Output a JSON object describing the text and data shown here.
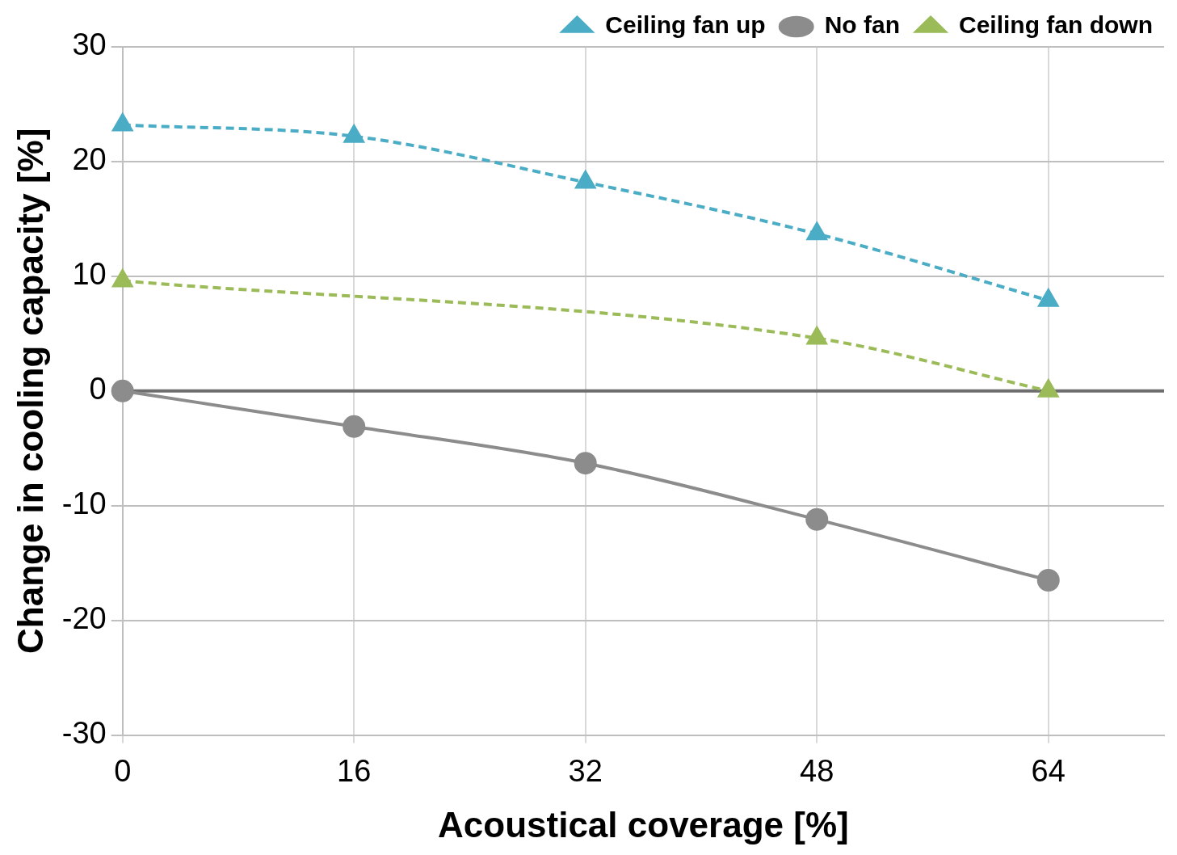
{
  "chart_data": {
    "type": "line",
    "xlabel": "Acoustical coverage [%]",
    "ylabel": "Change in cooling capacity [%]",
    "x": [
      0,
      16,
      32,
      48,
      64
    ],
    "series": [
      {
        "name": "Ceiling fan up",
        "color": "#4bacc6",
        "values": [
          23.2,
          22.2,
          18.2,
          13.7,
          7.9
        ],
        "line_style": "dashed",
        "marker": "triangle"
      },
      {
        "name": "No fan",
        "color": "#8c8c8c",
        "values": [
          0,
          -3.1,
          -6.3,
          -11.2,
          -16.5
        ],
        "line_style": "solid",
        "marker": "circle"
      },
      {
        "name": "Ceiling fan down",
        "color": "#9bbb59",
        "x": [
          0,
          48,
          64
        ],
        "values": [
          9.6,
          4.6,
          0
        ],
        "line_style": "dashed",
        "marker": "triangle"
      }
    ],
    "xlim": [
      0,
      72
    ],
    "xticks": [
      0,
      16,
      32,
      48,
      64
    ],
    "ylim": [
      -30,
      30
    ],
    "yticks": [
      -30,
      -20,
      -10,
      0,
      10,
      20,
      30
    ],
    "grid": true,
    "legend": "top right",
    "ref_lines": [
      {
        "axis": "y",
        "value": 0,
        "color": "#6e6e6e"
      }
    ]
  }
}
